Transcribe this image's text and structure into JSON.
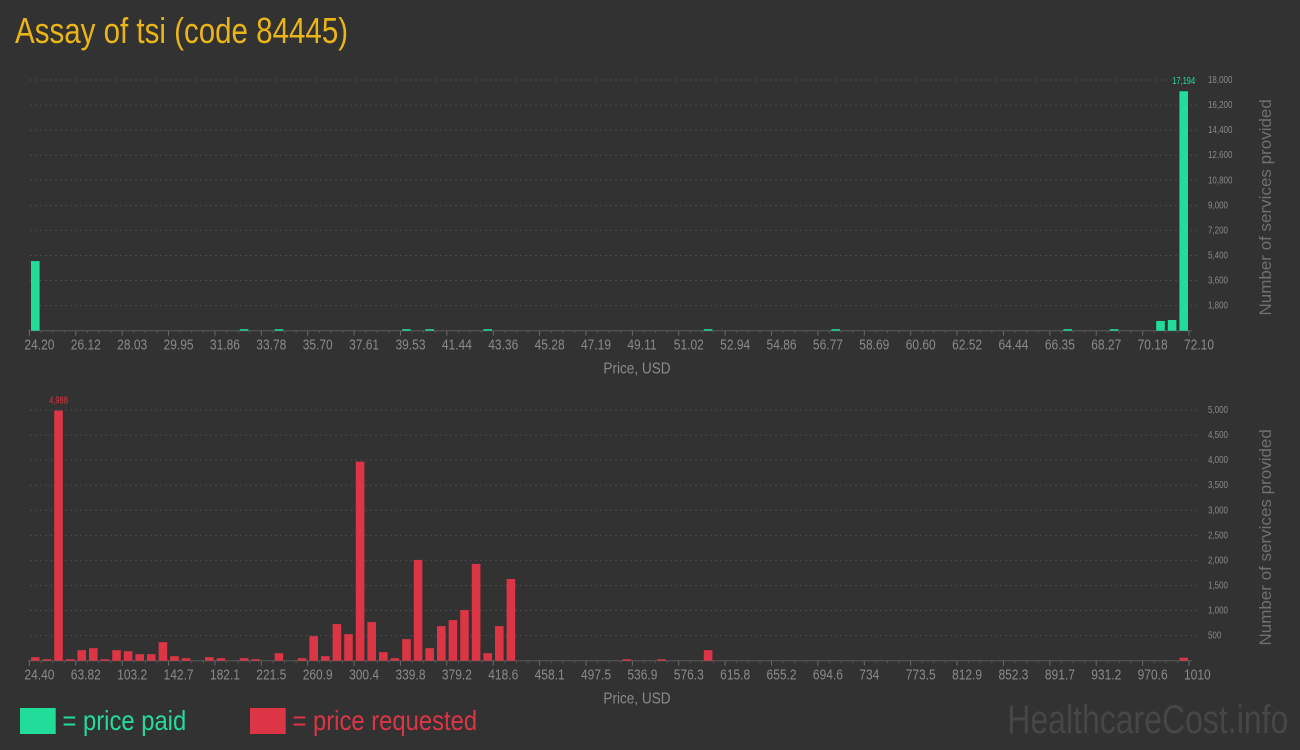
{
  "title": "Assay of tsi (code 84445)",
  "watermark": "HealthcareCost.info",
  "legend": {
    "paid_label": "= price paid",
    "requested_label": "= price requested",
    "paid_color": "#22dd9a",
    "requested_color": "#dc3545"
  },
  "chart_data": [
    {
      "type": "bar",
      "xlabel": "Price, USD",
      "ylabel": "Number of services provided",
      "color": "#22dd9a",
      "ylim": [
        0,
        18000
      ],
      "yticks": [
        "1,800",
        "3,600",
        "5,400",
        "7,200",
        "9,000",
        "10,800",
        "12,600",
        "14,400",
        "16,200",
        "18,000"
      ],
      "ytick_values": [
        1800,
        3600,
        5400,
        7200,
        9000,
        10800,
        12600,
        14400,
        16200,
        18000
      ],
      "xtick_labels": [
        "24.20",
        "26.12",
        "28.03",
        "29.95",
        "31.86",
        "33.78",
        "35.70",
        "37.61",
        "39.53",
        "41.44",
        "43.36",
        "45.28",
        "47.19",
        "49.11",
        "51.02",
        "52.94",
        "54.86",
        "56.77",
        "58.69",
        "60.60",
        "62.52",
        "64.44",
        "66.35",
        "68.27",
        "70.18",
        "72.10"
      ],
      "x_start": 24.2,
      "bin_width": 0.479,
      "grid": true,
      "max_label": "17,194",
      "bins": 100,
      "values_sparse": {
        "0": 5000,
        "18": 30,
        "21": 30,
        "32": 30,
        "34": 30,
        "39": 30,
        "58": 30,
        "69": 30,
        "89": 30,
        "93": 30,
        "97": 700,
        "98": 770,
        "99": 17194
      }
    },
    {
      "type": "bar",
      "xlabel": "Price, USD",
      "ylabel": "Number of services provided",
      "color": "#dc3545",
      "ylim": [
        0,
        5000
      ],
      "yticks": [
        "500",
        "1,000",
        "1,500",
        "2,000",
        "2,500",
        "3,000",
        "3,500",
        "4,000",
        "4,500",
        "5,000"
      ],
      "ytick_values": [
        500,
        1000,
        1500,
        2000,
        2500,
        3000,
        3500,
        4000,
        4500,
        5000
      ],
      "xtick_labels": [
        "24.40",
        "63.82",
        "103.2",
        "142.7",
        "182.1",
        "221.5",
        "260.9",
        "300.4",
        "339.8",
        "379.2",
        "418.6",
        "458.1",
        "497.5",
        "536.9",
        "576.3",
        "615.8",
        "655.2",
        "694.6",
        "734",
        "773.5",
        "812.9",
        "852.3",
        "891.7",
        "931.2",
        "970.6",
        "1010"
      ],
      "x_start": 24.4,
      "bin_width": 9.855,
      "grid": true,
      "max_label": "4,988",
      "bins": 100,
      "values_sparse": {
        "0": 70,
        "1": 10,
        "2": 4988,
        "3": 30,
        "4": 210,
        "5": 250,
        "6": 30,
        "7": 210,
        "8": 190,
        "9": 130,
        "10": 130,
        "11": 370,
        "12": 90,
        "13": 50,
        "15": 70,
        "16": 50,
        "18": 50,
        "19": 30,
        "21": 150,
        "23": 50,
        "24": 490,
        "25": 90,
        "26": 730,
        "27": 530,
        "28": 3970,
        "29": 770,
        "30": 170,
        "31": 50,
        "32": 430,
        "33": 2010,
        "34": 250,
        "35": 690,
        "36": 810,
        "37": 1010,
        "38": 1930,
        "39": 150,
        "40": 690,
        "41": 1630,
        "51": 30,
        "54": 10,
        "58": 210,
        "99": 60
      }
    }
  ]
}
